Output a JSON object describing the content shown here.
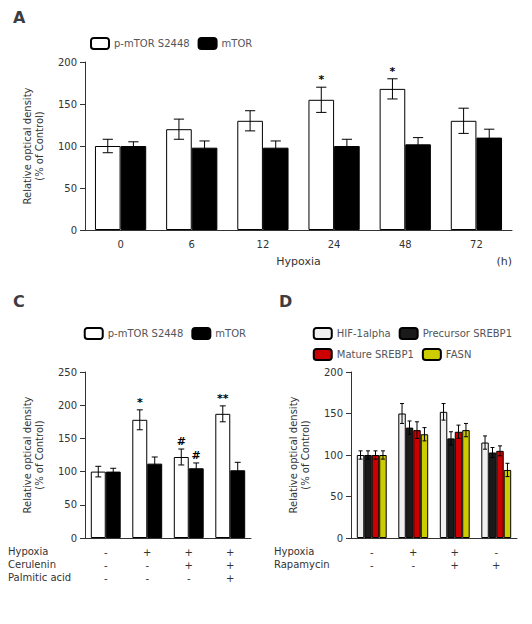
{
  "chart_data": [
    {
      "type": "bar",
      "title": "A",
      "categories": [
        "0",
        "6",
        "12",
        "24",
        "48",
        "72"
      ],
      "x_label": "Hypoxia",
      "y_label": "Relative optical density\n(% of Control)",
      "annotations": [
        "(h)"
      ],
      "series": [
        {
          "name": "p-mTOR S2448",
          "color": "white",
          "values": [
            100,
            120,
            130,
            155,
            168,
            130
          ],
          "errors": [
            8,
            12,
            12,
            15,
            12,
            15
          ],
          "stars": [
            null,
            null,
            null,
            "*",
            "*",
            null
          ]
        },
        {
          "name": "mTOR",
          "color": "black",
          "values": [
            100,
            98,
            98,
            100,
            102,
            110
          ],
          "errors": [
            5,
            8,
            8,
            8,
            8,
            10
          ]
        }
      ],
      "ylim": [
        0,
        200
      ],
      "yticks": [
        0,
        50,
        100,
        150,
        200
      ],
      "grid": false,
      "legend": "upper left"
    },
    {
      "type": "bar",
      "title": "C",
      "categories": [
        null,
        null,
        null,
        null
      ],
      "conditions": {
        "row_labels": [
          "Hypoxia",
          "Cerulenin",
          "Palmitic acid"
        ],
        "columns": [
          [
            "-",
            "-",
            "-"
          ],
          [
            "+",
            "-",
            "-"
          ],
          [
            "+",
            "+",
            "-"
          ],
          [
            "+",
            "+",
            "+"
          ]
        ]
      },
      "y_label": "Relative optical density\n(% of Control)",
      "series": [
        {
          "name": "p-mTOR S2448",
          "color": "white",
          "values": [
            100,
            178,
            122,
            187
          ],
          "errors": [
            8,
            15,
            12,
            12
          ],
          "stars": [
            null,
            "*",
            "#",
            "**"
          ]
        },
        {
          "name": "mTOR",
          "color": "black",
          "values": [
            100,
            112,
            105,
            102
          ],
          "errors": [
            5,
            10,
            8,
            12
          ],
          "stars": [
            null,
            null,
            "#",
            null
          ]
        }
      ],
      "ylim": [
        0,
        250
      ],
      "yticks": [
        0,
        50,
        100,
        150,
        200,
        250
      ],
      "grid": false,
      "legend": "upper right"
    },
    {
      "type": "bar",
      "title": "D",
      "categories": [
        null,
        null,
        null,
        null
      ],
      "conditions": {
        "row_labels": [
          "Hypoxia",
          "Rapamycin"
        ],
        "columns": [
          [
            "-",
            "-"
          ],
          [
            "+",
            "-"
          ],
          [
            "+",
            "+"
          ],
          [
            "-",
            "+"
          ]
        ]
      },
      "y_label": "Relative optical density\n(% of Control)",
      "series": [
        {
          "name": "HIF-1alpha",
          "color": "#f0f0f0",
          "values": [
            100,
            150,
            152,
            115
          ],
          "errors": [
            5,
            12,
            10,
            8
          ]
        },
        {
          "name": "Precursor SREBP1",
          "color": "#1a1a1a",
          "values": [
            100,
            133,
            120,
            103
          ],
          "errors": [
            5,
            8,
            8,
            6
          ]
        },
        {
          "name": "Mature SREBP1",
          "color": "#cc0000",
          "values": [
            100,
            130,
            128,
            105
          ],
          "errors": [
            5,
            10,
            8,
            6
          ]
        },
        {
          "name": "FASN",
          "color": "#cccc00",
          "values": [
            100,
            125,
            130,
            82
          ],
          "errors": [
            5,
            8,
            8,
            8
          ]
        }
      ],
      "ylim": [
        0,
        200
      ],
      "yticks": [
        0,
        50,
        100,
        150,
        200
      ],
      "grid": false,
      "legend": "upper right"
    }
  ]
}
